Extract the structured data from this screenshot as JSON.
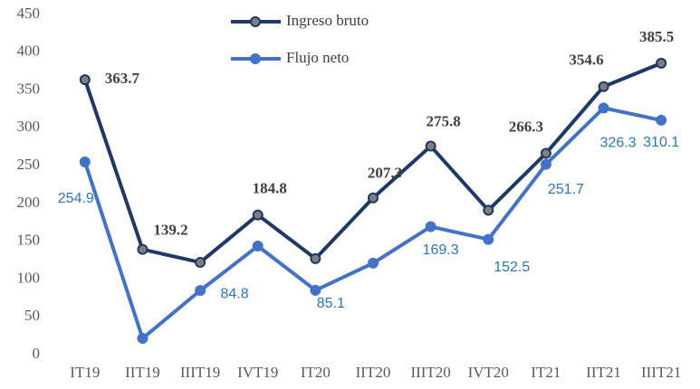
{
  "chart_data": {
    "type": "line",
    "categories": [
      "IT19",
      "IIT19",
      "IIIT19",
      "IVT19",
      "IT20",
      "IIT20",
      "IIIT20",
      "IVT20",
      "IT21",
      "IIT21",
      "IIIT21"
    ],
    "series": [
      {
        "name": "Ingreso bruto",
        "color": "#1f3864",
        "values": [
          363.7,
          139.2,
          122,
          184.8,
          127,
          207.3,
          275.8,
          191,
          266.3,
          354.6,
          385.5
        ],
        "value_labels": [
          "363.7",
          "139.2",
          null,
          "184.8",
          null,
          "207.3",
          "275.8",
          null,
          "266.3",
          "354.6",
          "385.5"
        ]
      },
      {
        "name": "Flujo neto",
        "color": "#4472c4",
        "values": [
          254.9,
          21.5,
          84.8,
          143.6,
          85.1,
          121,
          169.3,
          152.5,
          251.7,
          326.3,
          310.1
        ],
        "value_labels": [
          "254.9",
          null,
          "84.8",
          null,
          "85.1",
          null,
          "169.3",
          "152.5",
          "251.7",
          "326.3",
          "310.1"
        ]
      }
    ],
    "ylim": [
      0,
      450
    ],
    "yticks": [
      0,
      50,
      100,
      150,
      200,
      250,
      300,
      350,
      400,
      450
    ],
    "grid": false,
    "legend": "top"
  }
}
